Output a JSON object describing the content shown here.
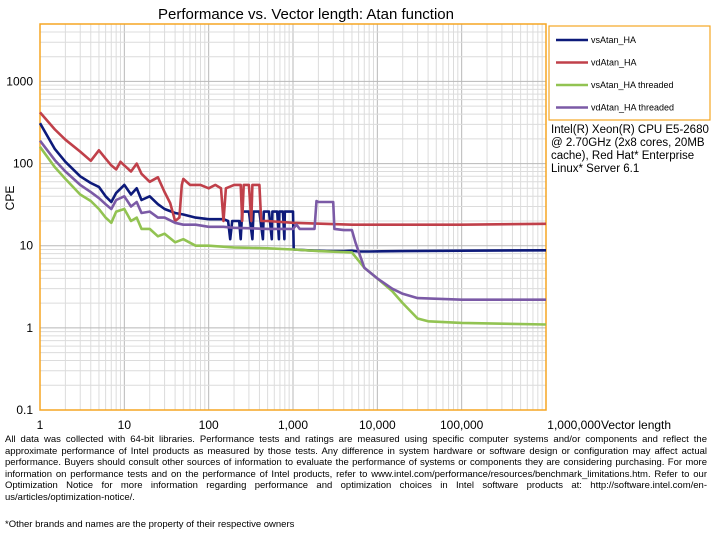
{
  "chart_data": {
    "type": "line",
    "title": "Performance vs. Vector length: Atan function",
    "xlabel": "Vector length",
    "ylabel": "CPE",
    "x_scale": "log",
    "y_scale": "log",
    "xlim": [
      1,
      1000000
    ],
    "ylim": [
      0.1,
      5000
    ],
    "x_ticks": [
      {
        "value": 1,
        "label": "1"
      },
      {
        "value": 10,
        "label": "10"
      },
      {
        "value": 100,
        "label": "100"
      },
      {
        "value": 1000,
        "label": "1,000"
      },
      {
        "value": 10000,
        "label": "10,000"
      },
      {
        "value": 100000,
        "label": "100,000"
      },
      {
        "value": 1000000,
        "label": "1,000,000"
      }
    ],
    "y_ticks": [
      {
        "value": 0.1,
        "label": "0.1"
      },
      {
        "value": 1,
        "label": "1"
      },
      {
        "value": 10,
        "label": "10"
      },
      {
        "value": 100,
        "label": "100"
      },
      {
        "value": 1000,
        "label": "1000"
      }
    ],
    "grid": true,
    "legend_position": "top-right",
    "series": [
      {
        "name": "vsAtan_HA",
        "color": "#0d1a7a",
        "points": [
          [
            1,
            310
          ],
          [
            1.5,
            150
          ],
          [
            2,
            105
          ],
          [
            3,
            70
          ],
          [
            4,
            58
          ],
          [
            5,
            52
          ],
          [
            6,
            40
          ],
          [
            7,
            34
          ],
          [
            8,
            44
          ],
          [
            10,
            55
          ],
          [
            12,
            42
          ],
          [
            14,
            50
          ],
          [
            16,
            36
          ],
          [
            20,
            40
          ],
          [
            25,
            32
          ],
          [
            30,
            28
          ],
          [
            40,
            25
          ],
          [
            50,
            24
          ],
          [
            70,
            22
          ],
          [
            100,
            21
          ],
          [
            150,
            21
          ],
          [
            170,
            20
          ],
          [
            180,
            12
          ],
          [
            190,
            20
          ],
          [
            200,
            20
          ],
          [
            230,
            20
          ],
          [
            240,
            12
          ],
          [
            250,
            26
          ],
          [
            300,
            26
          ],
          [
            330,
            12
          ],
          [
            340,
            26
          ],
          [
            400,
            26
          ],
          [
            440,
            12
          ],
          [
            450,
            26
          ],
          [
            520,
            26
          ],
          [
            560,
            12
          ],
          [
            570,
            26
          ],
          [
            650,
            26
          ],
          [
            680,
            12
          ],
          [
            690,
            26
          ],
          [
            760,
            26
          ],
          [
            790,
            12
          ],
          [
            800,
            26
          ],
          [
            1000,
            26
          ],
          [
            1020,
            9
          ],
          [
            1500,
            8.8
          ],
          [
            2500,
            8.6
          ],
          [
            4000,
            8.6
          ],
          [
            5000,
            8.7
          ],
          [
            6000,
            8.5
          ],
          [
            8000,
            8.5
          ],
          [
            20000,
            8.6
          ],
          [
            100000,
            8.7
          ],
          [
            1000000,
            8.8
          ]
        ]
      },
      {
        "name": "vdAtan_HA",
        "color": "#c0404a",
        "points": [
          [
            1,
            420
          ],
          [
            1.5,
            260
          ],
          [
            2,
            195
          ],
          [
            3,
            140
          ],
          [
            4,
            108
          ],
          [
            5,
            145
          ],
          [
            6,
            115
          ],
          [
            7,
            95
          ],
          [
            8,
            85
          ],
          [
            9,
            105
          ],
          [
            10,
            95
          ],
          [
            12,
            80
          ],
          [
            14,
            100
          ],
          [
            16,
            75
          ],
          [
            20,
            60
          ],
          [
            25,
            68
          ],
          [
            30,
            45
          ],
          [
            35,
            33
          ],
          [
            40,
            20
          ],
          [
            45,
            22
          ],
          [
            48,
            55
          ],
          [
            50,
            65
          ],
          [
            60,
            55
          ],
          [
            80,
            55
          ],
          [
            100,
            50
          ],
          [
            120,
            55
          ],
          [
            140,
            50
          ],
          [
            150,
            20
          ],
          [
            160,
            50
          ],
          [
            200,
            55
          ],
          [
            240,
            55
          ],
          [
            250,
            20
          ],
          [
            260,
            55
          ],
          [
            300,
            55
          ],
          [
            320,
            20
          ],
          [
            330,
            55
          ],
          [
            400,
            55
          ],
          [
            420,
            20
          ],
          [
            450,
            20
          ],
          [
            500,
            20
          ],
          [
            1000,
            19
          ],
          [
            5000,
            18
          ],
          [
            10000,
            18
          ],
          [
            100000,
            18
          ],
          [
            1000000,
            18.5
          ]
        ]
      },
      {
        "name": "vsAtan_HA threaded",
        "color": "#92c352",
        "points": [
          [
            1,
            160
          ],
          [
            1.5,
            90
          ],
          [
            2,
            65
          ],
          [
            3,
            42
          ],
          [
            4,
            35
          ],
          [
            5,
            28
          ],
          [
            6,
            22
          ],
          [
            7,
            19
          ],
          [
            8,
            26
          ],
          [
            10,
            28
          ],
          [
            12,
            20
          ],
          [
            14,
            22
          ],
          [
            16,
            16
          ],
          [
            20,
            16
          ],
          [
            25,
            13
          ],
          [
            30,
            14
          ],
          [
            40,
            11
          ],
          [
            50,
            12
          ],
          [
            70,
            10
          ],
          [
            100,
            10
          ],
          [
            200,
            9.5
          ],
          [
            500,
            9.3
          ],
          [
            1000,
            9
          ],
          [
            2000,
            8.6
          ],
          [
            5000,
            8.3
          ],
          [
            7000,
            5.4
          ],
          [
            10000,
            4
          ],
          [
            15000,
            2.8
          ],
          [
            20000,
            2
          ],
          [
            30000,
            1.3
          ],
          [
            40000,
            1.2
          ],
          [
            100000,
            1.15
          ],
          [
            1000000,
            1.1
          ]
        ]
      },
      {
        "name": "vdAtan_HA threaded",
        "color": "#7b5aa6",
        "points": [
          [
            1,
            190
          ],
          [
            1.5,
            110
          ],
          [
            2,
            80
          ],
          [
            3,
            55
          ],
          [
            4,
            45
          ],
          [
            5,
            38
          ],
          [
            6,
            32
          ],
          [
            7,
            28
          ],
          [
            8,
            36
          ],
          [
            10,
            40
          ],
          [
            12,
            30
          ],
          [
            14,
            34
          ],
          [
            16,
            25
          ],
          [
            20,
            26
          ],
          [
            25,
            22
          ],
          [
            30,
            22
          ],
          [
            40,
            19
          ],
          [
            50,
            18
          ],
          [
            70,
            18
          ],
          [
            100,
            17
          ],
          [
            150,
            17
          ],
          [
            200,
            16.5
          ],
          [
            500,
            16
          ],
          [
            1000,
            16
          ],
          [
            1100,
            18
          ],
          [
            1200,
            16
          ],
          [
            1800,
            16
          ],
          [
            1900,
            35
          ],
          [
            2000,
            34
          ],
          [
            3000,
            34
          ],
          [
            3100,
            16
          ],
          [
            4000,
            15.5
          ],
          [
            5000,
            15.5
          ],
          [
            5500,
            11
          ],
          [
            7000,
            5.4
          ],
          [
            10000,
            4
          ],
          [
            15000,
            3
          ],
          [
            20000,
            2.6
          ],
          [
            30000,
            2.3
          ],
          [
            100000,
            2.2
          ],
          [
            1000000,
            2.2
          ]
        ]
      }
    ]
  },
  "cpu_note": "Intel(R) Xeon(R) CPU E5-2680 @ 2.70GHz (2x8 cores, 20MB cache), Red Hat* Enterprise Linux* Server 6.1",
  "disclaimer": "All data was collected with 64-bit libraries. Performance tests and ratings are measured using specific computer systems and/or components and reflect the approximate performance of Intel products as measured by those tests. Any difference in system hardware or software design or configuration may affect actual performance. Buyers should consult other sources of information to evaluate the performance of systems or components they are considering purchasing. For more information on performance tests and on the performance of Intel products, refer to www.intel.com/performance/resources/benchmark_limitations.htm. Refer to our Optimization Notice for more information regarding performance and optimization choices in Intel software products at: http://software.intel.com/en-us/articles/optimization-notice/.",
  "footnote": "*Other brands and names are the property of their respective owners"
}
